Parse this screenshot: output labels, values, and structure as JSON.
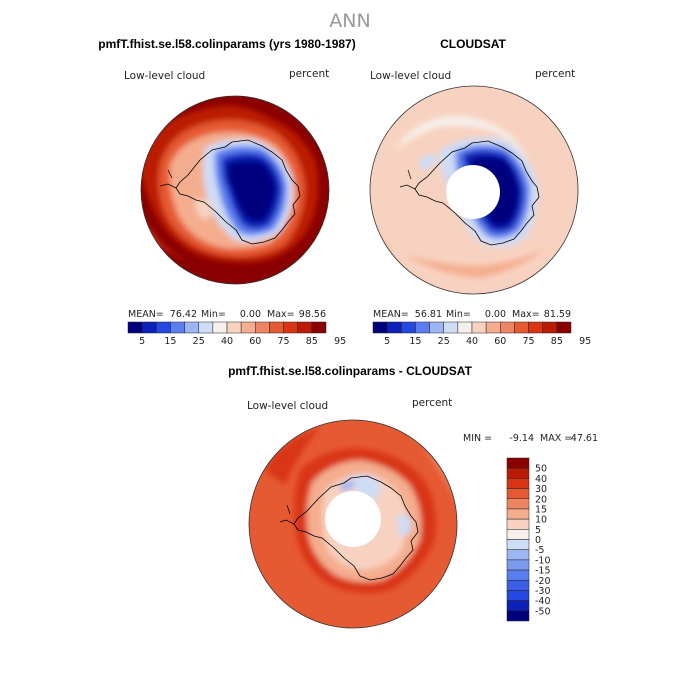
{
  "chart_data": [
    {
      "type": "heatmap",
      "projection": "south-polar-stereographic",
      "title": "pmfT.fhist.se.l58.colinparams (yrs 1980-1987)",
      "left_label": "Low-level cloud",
      "right_label": "percent",
      "stats": {
        "mean_label": "MEAN=",
        "mean": "76.42",
        "min_label": "Min=",
        "min": "0.00",
        "max_label": "Max=",
        "max": "98.56"
      },
      "colorbar_levels": [
        "5",
        "15",
        "25",
        "40",
        "60",
        "75",
        "85",
        "95"
      ],
      "colors": [
        "#00007f",
        "#0a20b8",
        "#2448e0",
        "#5a7ef0",
        "#9cb6f4",
        "#cfdcf5",
        "#f5f0ec",
        "#f8d2c0",
        "#f4ad8e",
        "#ee8562",
        "#e65a33",
        "#d93414",
        "#bb1a05",
        "#8b0000"
      ]
    },
    {
      "type": "heatmap",
      "projection": "south-polar-stereographic",
      "title": "CLOUDSAT",
      "left_label": "Low-level cloud",
      "right_label": "percent",
      "stats": {
        "mean_label": "MEAN=",
        "mean": "56.81",
        "min_label": "Min=",
        "min": "0.00",
        "max_label": "Max=",
        "max": "81.59"
      },
      "colorbar_levels": [
        "5",
        "15",
        "25",
        "40",
        "60",
        "75",
        "85",
        "95"
      ],
      "colors": [
        "#00007f",
        "#0a20b8",
        "#2448e0",
        "#5a7ef0",
        "#9cb6f4",
        "#cfdcf5",
        "#f5f0ec",
        "#f8d2c0",
        "#f4ad8e",
        "#ee8562",
        "#e65a33",
        "#d93414",
        "#bb1a05",
        "#8b0000"
      ]
    },
    {
      "type": "heatmap",
      "projection": "south-polar-stereographic",
      "title": "pmfT.fhist.se.l58.colinparams - CLOUDSAT",
      "left_label": "Low-level cloud",
      "right_label": "percent",
      "stats": {
        "min_label": "MIN =",
        "min": "-9.14",
        "max_label": "MAX =",
        "max": "47.61"
      },
      "colorbar_levels": [
        "50",
        "40",
        "30",
        "20",
        "15",
        "10",
        "5",
        "0",
        "-5",
        "-10",
        "-15",
        "-20",
        "-30",
        "-40",
        "-50"
      ],
      "colors": [
        "#8b0000",
        "#bb1a05",
        "#d93414",
        "#e65a33",
        "#ee8562",
        "#f4ad8e",
        "#f8d2c0",
        "#f5f0ec",
        "#cfdcf5",
        "#9cb6f4",
        "#7c9af0",
        "#5a7ef0",
        "#3a5ee6",
        "#2448e0",
        "#0a20b8",
        "#00007f"
      ]
    }
  ],
  "page_title": "ANN"
}
